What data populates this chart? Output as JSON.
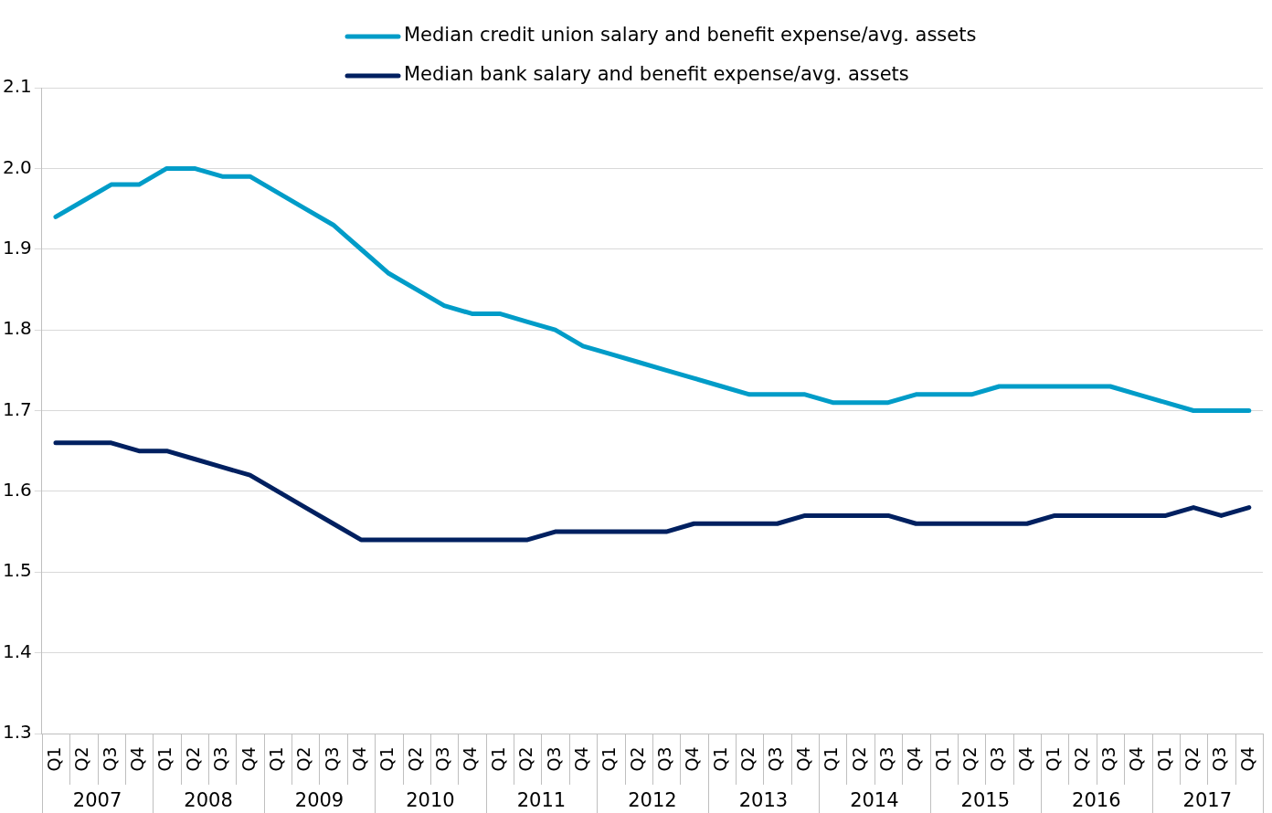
{
  "chart_data": {
    "type": "line",
    "categories": [
      "Q1",
      "Q2",
      "Q3",
      "Q4",
      "Q1",
      "Q2",
      "Q3",
      "Q4",
      "Q1",
      "Q2",
      "Q3",
      "Q4",
      "Q1",
      "Q2",
      "Q3",
      "Q4",
      "Q1",
      "Q2",
      "Q3",
      "Q4",
      "Q1",
      "Q2",
      "Q3",
      "Q4",
      "Q1",
      "Q2",
      "Q3",
      "Q4",
      "Q1",
      "Q2",
      "Q3",
      "Q4",
      "Q1",
      "Q2",
      "Q3",
      "Q4",
      "Q1",
      "Q2",
      "Q3",
      "Q4",
      "Q1",
      "Q2",
      "Q3",
      "Q4"
    ],
    "annotations": [
      "2007",
      "2008",
      "2009",
      "2010",
      "2011",
      "2012",
      "2013",
      "2014",
      "2015",
      "2016",
      "2017"
    ],
    "series": [
      {
        "name": "Median credit union salary and benefit expense/avg. assets",
        "color": "#009cc8",
        "values": [
          1.94,
          1.96,
          1.98,
          1.98,
          2.0,
          2.0,
          1.99,
          1.99,
          1.97,
          1.95,
          1.93,
          1.9,
          1.87,
          1.85,
          1.83,
          1.82,
          1.82,
          1.81,
          1.8,
          1.78,
          1.77,
          1.76,
          1.75,
          1.74,
          1.73,
          1.72,
          1.72,
          1.72,
          1.71,
          1.71,
          1.71,
          1.72,
          1.72,
          1.72,
          1.73,
          1.73,
          1.73,
          1.73,
          1.73,
          1.72,
          1.71,
          1.7,
          1.7,
          1.7
        ]
      },
      {
        "name": "Median bank salary and benefit expense/avg. assets",
        "color": "#002060",
        "values": [
          1.66,
          1.66,
          1.66,
          1.65,
          1.65,
          1.64,
          1.63,
          1.62,
          1.6,
          1.58,
          1.56,
          1.54,
          1.54,
          1.54,
          1.54,
          1.54,
          1.54,
          1.54,
          1.55,
          1.55,
          1.55,
          1.55,
          1.55,
          1.56,
          1.56,
          1.56,
          1.56,
          1.57,
          1.57,
          1.57,
          1.57,
          1.56,
          1.56,
          1.56,
          1.56,
          1.56,
          1.57,
          1.57,
          1.57,
          1.57,
          1.57,
          1.58,
          1.57,
          1.58
        ]
      }
    ],
    "ylim": [
      1.3,
      2.1
    ],
    "yticks": [
      1.3,
      1.4,
      1.5,
      1.6,
      1.7,
      1.8,
      1.9,
      {
        "value": 2,
        "label": "2.0"
      },
      2.1
    ],
    "grid": "y",
    "legend": "top",
    "marker": "none",
    "line_style": "solid"
  }
}
